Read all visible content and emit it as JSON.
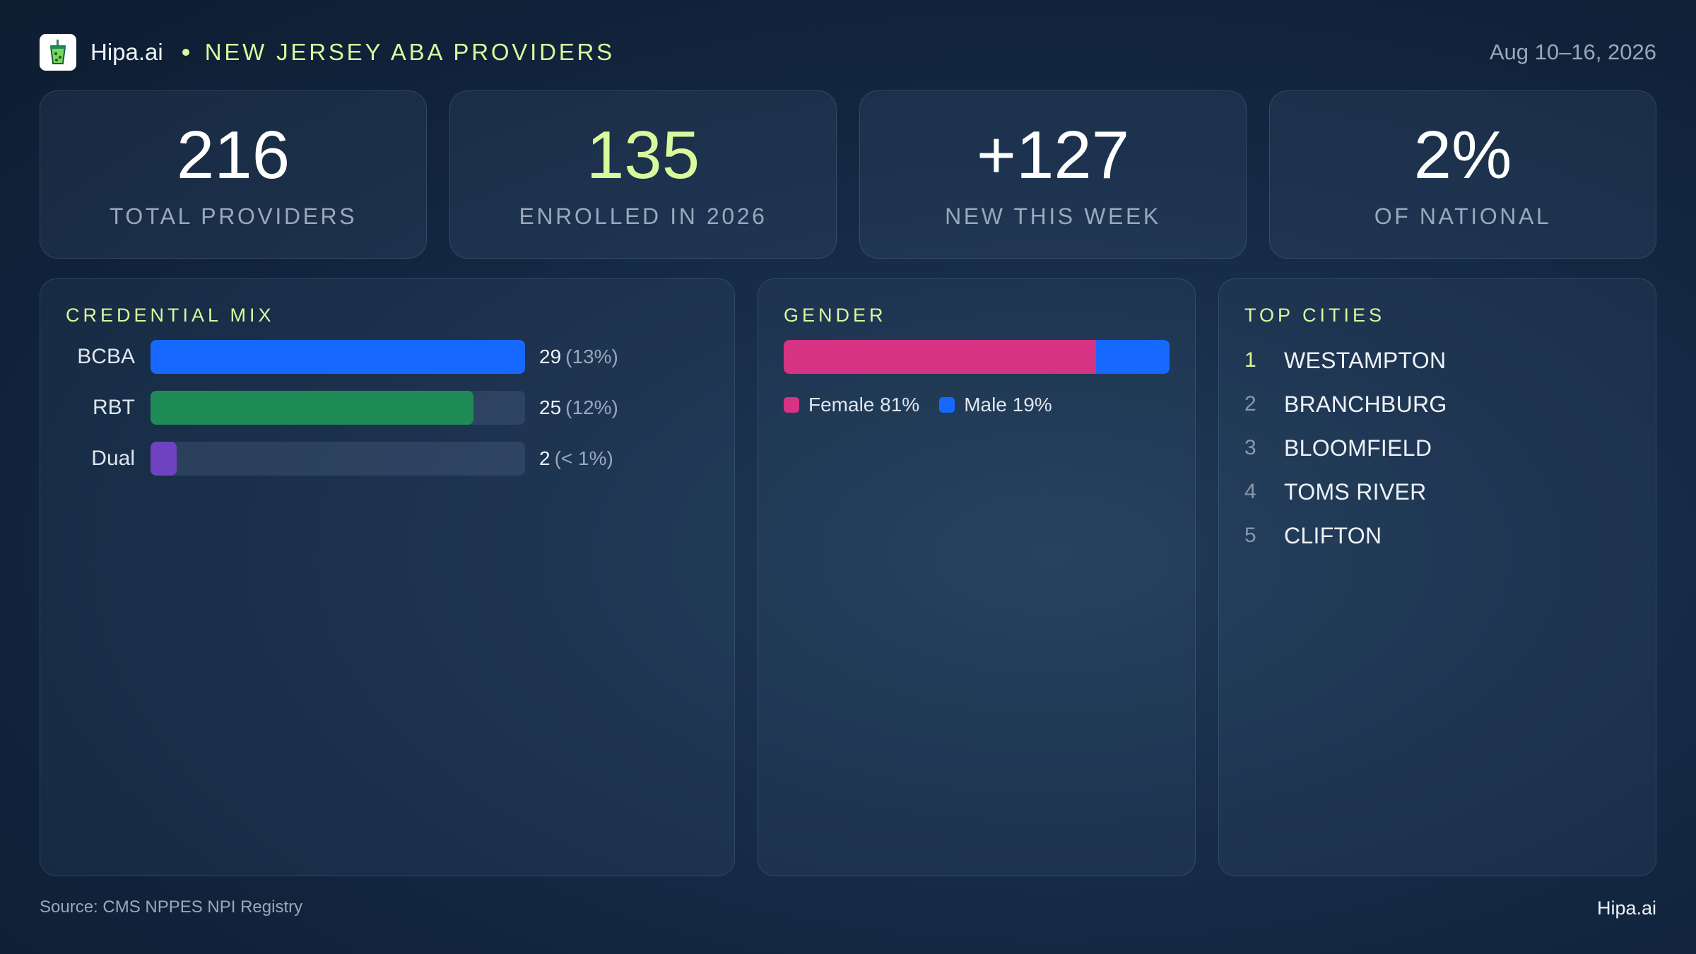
{
  "header": {
    "brand": "Hipa.ai",
    "title": "NEW JERSEY ABA PROVIDERS",
    "date_range": "Aug 10–16, 2026",
    "logo_icon": "cup-icon"
  },
  "kpis": [
    {
      "value": "216",
      "label": "TOTAL PROVIDERS"
    },
    {
      "value": "135",
      "label": "ENROLLED IN 2026"
    },
    {
      "value": "+127",
      "label": "NEW THIS WEEK"
    },
    {
      "value": "2%",
      "label": "OF NATIONAL"
    }
  ],
  "credential_mix": {
    "title": "CREDENTIAL MIX",
    "rows": [
      {
        "label": "BCBA",
        "count": "29",
        "pct": "(13%)",
        "fill_fraction": 1.0,
        "color": "#1768ff"
      },
      {
        "label": "RBT",
        "count": "25",
        "pct": "(12%)",
        "fill_fraction": 0.862,
        "color": "#1f8c57"
      },
      {
        "label": "Dual",
        "count": "2",
        "pct": "(< 1%)",
        "fill_fraction": 0.069,
        "color": "#6f42c1"
      }
    ]
  },
  "gender": {
    "title": "GENDER",
    "segments": [
      {
        "label": "Female 81%",
        "fraction": 0.81,
        "color": "#d63384"
      },
      {
        "label": "Male 19%",
        "fraction": 0.19,
        "color": "#1768ff"
      }
    ]
  },
  "top_cities": {
    "title": "TOP CITIES",
    "items": [
      {
        "rank": "1",
        "name": "WESTAMPTON"
      },
      {
        "rank": "2",
        "name": "BRANCHBURG"
      },
      {
        "rank": "3",
        "name": "BLOOMFIELD"
      },
      {
        "rank": "4",
        "name": "TOMS RIVER"
      },
      {
        "rank": "5",
        "name": "CLIFTON"
      }
    ]
  },
  "footer": {
    "source": "Source: CMS NPPES NPI Registry",
    "brand": "Hipa.ai"
  },
  "colors": {
    "accent": "#d9f99d",
    "background": "#12253e"
  }
}
